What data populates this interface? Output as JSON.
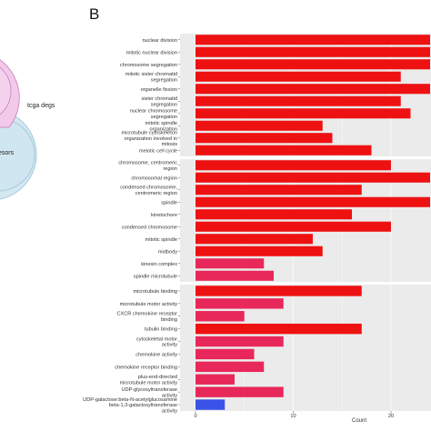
{
  "panel_label": "B",
  "venn": {
    "set_label": "tcga degs",
    "partial_label": "esors"
  },
  "chart_data": {
    "type": "bar",
    "orientation": "horizontal",
    "xlabel": "Count",
    "xlim": [
      0,
      24
    ],
    "xticks": [
      0,
      10,
      20
    ],
    "grid": true,
    "panels": [
      {
        "name": "",
        "categories": [
          "nuclear division",
          "mitotic nuclear division",
          "chromosome segregation",
          "mitotic sister chromatid segregation",
          "organelle fission",
          "sister chromatid segregation",
          "nuclear chromosome segregation",
          "mitotic spindle organization",
          "microtubule cytoskeleton organization involved in mitosis",
          "meiotic cell cycle"
        ],
        "values": [
          24,
          24,
          24,
          21,
          24,
          21,
          22,
          13,
          14,
          18
        ]
      },
      {
        "name": "",
        "categories": [
          "chromosome, centromeric region",
          "chromosomal region",
          "condensed chromosome, centromeric region",
          "spindle",
          "kinetochore",
          "condensed chromosome",
          "mitotic spindle",
          "midbody",
          "kinesin complex",
          "spindle microtubule"
        ],
        "values": [
          20,
          24,
          17,
          24,
          16,
          20,
          12,
          13,
          7,
          8
        ]
      },
      {
        "name": "",
        "categories": [
          "microtubule binding",
          "microtubule motor activity",
          "CXCR chemokine receptor binding",
          "tubulin binding",
          "cytoskeletal motor activity",
          "chemokine activity",
          "chemokine receptor binding",
          "plus-end-directed microtubule motor activity",
          "UDP-glycosyltransferase activity",
          "UDP-galactose:beta-N-acetylglucosamine beta-1,3-galactosyltransferase activity"
        ],
        "values": [
          17,
          9,
          5,
          17,
          9,
          6,
          7,
          4,
          9,
          3
        ]
      }
    ],
    "colors": {
      "high": "#ee1111",
      "mid": "#e8285a",
      "low": "#3a52e8",
      "panel_bg": "#ebebeb",
      "grid": "#ffffff"
    }
  }
}
